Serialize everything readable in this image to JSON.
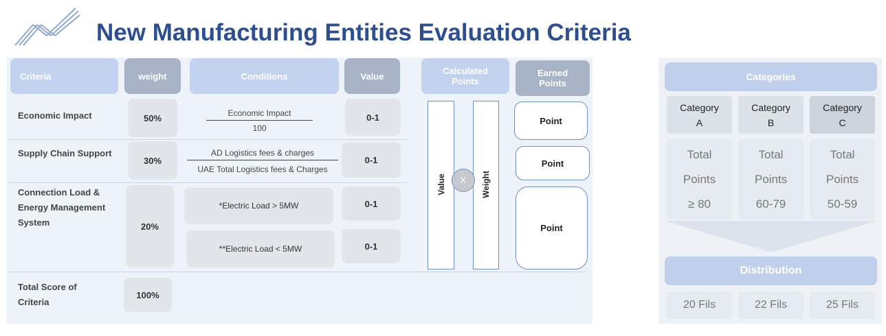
{
  "title": "New Manufacturing Entities Evaluation Criteria",
  "table": {
    "headers": [
      "Criteria",
      "weight",
      "Conditions",
      "Value",
      "Calculated Points",
      "Earned Points"
    ],
    "rows": [
      {
        "criteria": "Economic Impact",
        "weight": "50%",
        "fraction": {
          "numerator": "Economic Impact",
          "denominator": "100"
        },
        "values": [
          "0-1"
        ]
      },
      {
        "criteria": "Supply Chain Support",
        "weight": "30%",
        "fraction": {
          "numerator": "AD Logistics fees & charges",
          "denominator": "UAE Total Logistics fees & Charges"
        },
        "values": [
          "0-1"
        ]
      },
      {
        "criteria": "Connection Load & Energy Management System",
        "weight": "20%",
        "conditions": [
          "*Electric Load > 5MW",
          "**Electric Load < 5MW"
        ],
        "values": [
          "0-1",
          "0-1"
        ]
      }
    ],
    "total": {
      "criteria": "Total Score of Criteria",
      "weight": "100%"
    }
  },
  "calculated": {
    "left": "Value",
    "operator": "X",
    "right": "Weight"
  },
  "earned": [
    "Point",
    "Point",
    "Point"
  ],
  "categories": {
    "title": "Categories",
    "items": [
      {
        "name": "Category A",
        "points": "Total Points ≥ 80",
        "fee": "20 Fils"
      },
      {
        "name": "Category B",
        "points": "Total Points 60-79",
        "fee": "22 Fils"
      },
      {
        "name": "Category C",
        "points": "Total Points 50-59",
        "fee": "25 Fils"
      }
    ],
    "distribution": "Distribution"
  }
}
